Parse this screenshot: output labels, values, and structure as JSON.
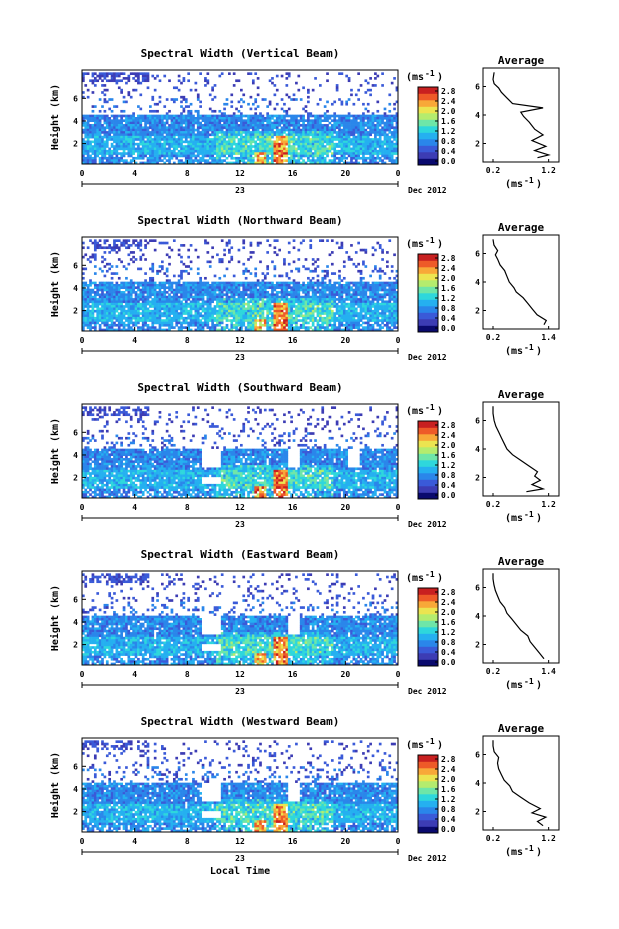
{
  "colormap": [
    "#0a0a6e",
    "#3c3cb4",
    "#3a5ad8",
    "#2a86ea",
    "#25b0f0",
    "#2ed7dc",
    "#6ee6a8",
    "#b4ec6e",
    "#ece450",
    "#f8a838",
    "#ee5a28",
    "#c82020"
  ],
  "chart_data": [
    {
      "type": "heatmap",
      "title": "Spectral Width (Vertical Beam)",
      "ylabel": "Height (km)",
      "x_ticks": [
        "0",
        "4",
        "8",
        "12",
        "16",
        "20",
        "0"
      ],
      "y_ticks": [
        "6",
        "4",
        "2"
      ],
      "date_left": "23",
      "date_right": "Dec 2012",
      "colorbar": {
        "unit": "(ms",
        "unit_sup": "-1",
        "unit_close": ")",
        "ticks": [
          "2.8",
          "2.4",
          "2.0",
          "1.6",
          "1.2",
          "0.8",
          "0.4",
          "0.0"
        ]
      },
      "profile": {
        "title": "Average",
        "x_ticks": [
          "0.2",
          "1.2"
        ],
        "y_ticks": [
          "6",
          "4",
          "2"
        ],
        "xlabel": "(ms",
        "xlabel_sup": "-1",
        "xlabel_close": ")",
        "points": [
          [
            1.0,
            1.0
          ],
          [
            1.2,
            1.2
          ],
          [
            0.95,
            1.5
          ],
          [
            1.15,
            1.8
          ],
          [
            0.9,
            2.2
          ],
          [
            1.1,
            2.6
          ],
          [
            0.95,
            3.0
          ],
          [
            0.85,
            3.5
          ],
          [
            0.75,
            3.9
          ],
          [
            0.7,
            4.2
          ],
          [
            1.1,
            4.5
          ],
          [
            0.55,
            4.8
          ],
          [
            0.45,
            5.2
          ],
          [
            0.35,
            5.6
          ],
          [
            0.3,
            5.9
          ],
          [
            0.22,
            6.2
          ],
          [
            0.2,
            6.5
          ],
          [
            0.22,
            7.0
          ]
        ]
      }
    },
    {
      "type": "heatmap",
      "title": "Spectral Width (Northward Beam)",
      "ylabel": "Height (km)",
      "x_ticks": [
        "0",
        "4",
        "8",
        "12",
        "16",
        "20",
        "0"
      ],
      "y_ticks": [
        "6",
        "4",
        "2"
      ],
      "date_left": "23",
      "date_right": "Dec 2012",
      "colorbar": {
        "unit": "(ms",
        "unit_sup": "-1",
        "unit_close": ")",
        "ticks": [
          "2.8",
          "2.4",
          "2.0",
          "1.6",
          "1.2",
          "0.8",
          "0.4",
          "0.0"
        ]
      },
      "profile": {
        "title": "Average",
        "x_ticks": [
          "0.2",
          "1.4"
        ],
        "y_ticks": [
          "6",
          "4",
          "2"
        ],
        "xlabel": "(ms",
        "xlabel_sup": "-1",
        "xlabel_close": ")",
        "points": [
          [
            1.3,
            1.0
          ],
          [
            1.35,
            1.3
          ],
          [
            1.15,
            1.7
          ],
          [
            1.05,
            2.1
          ],
          [
            0.95,
            2.5
          ],
          [
            0.85,
            2.9
          ],
          [
            0.7,
            3.3
          ],
          [
            0.65,
            3.6
          ],
          [
            0.55,
            4.0
          ],
          [
            0.5,
            4.4
          ],
          [
            0.45,
            4.8
          ],
          [
            0.35,
            5.2
          ],
          [
            0.3,
            5.6
          ],
          [
            0.25,
            5.9
          ],
          [
            0.3,
            6.2
          ],
          [
            0.22,
            6.6
          ],
          [
            0.2,
            7.0
          ]
        ]
      }
    },
    {
      "type": "heatmap",
      "title": "Spectral Width (Southward Beam)",
      "ylabel": "Height (km)",
      "x_ticks": [
        "0",
        "4",
        "8",
        "12",
        "16",
        "20",
        "0"
      ],
      "y_ticks": [
        "6",
        "4",
        "2"
      ],
      "date_left": "23",
      "date_right": "Dec 2012",
      "colorbar": {
        "unit": "(ms",
        "unit_sup": "-1",
        "unit_close": ")",
        "ticks": [
          "2.8",
          "2.4",
          "2.0",
          "1.6",
          "1.2",
          "0.8",
          "0.4",
          "0.0"
        ]
      },
      "profile": {
        "title": "Average",
        "x_ticks": [
          "0.2",
          "1.2"
        ],
        "y_ticks": [
          "6",
          "4",
          "2"
        ],
        "xlabel": "(ms",
        "xlabel_sup": "-1",
        "xlabel_close": ")",
        "points": [
          [
            0.8,
            1.0
          ],
          [
            1.1,
            1.2
          ],
          [
            0.9,
            1.5
          ],
          [
            1.05,
            1.8
          ],
          [
            0.95,
            2.1
          ],
          [
            1.0,
            2.4
          ],
          [
            0.85,
            2.8
          ],
          [
            0.7,
            3.2
          ],
          [
            0.55,
            3.6
          ],
          [
            0.45,
            4.0
          ],
          [
            0.4,
            4.4
          ],
          [
            0.35,
            4.8
          ],
          [
            0.3,
            5.2
          ],
          [
            0.25,
            5.6
          ],
          [
            0.22,
            6.0
          ],
          [
            0.2,
            6.5
          ],
          [
            0.2,
            7.0
          ]
        ]
      }
    },
    {
      "type": "heatmap",
      "title": "Spectral Width (Eastward Beam)",
      "ylabel": "Height (km)",
      "x_ticks": [
        "0",
        "4",
        "8",
        "12",
        "16",
        "20",
        "0"
      ],
      "y_ticks": [
        "6",
        "4",
        "2"
      ],
      "date_left": "23",
      "date_right": "Dec 2012",
      "colorbar": {
        "unit": "(ms",
        "unit_sup": "-1",
        "unit_close": ")",
        "ticks": [
          "2.8",
          "2.4",
          "2.0",
          "1.6",
          "1.2",
          "0.8",
          "0.4",
          "0.0"
        ]
      },
      "profile": {
        "title": "Average",
        "x_ticks": [
          "0.2",
          "1.4"
        ],
        "y_ticks": [
          "6",
          "4",
          "2"
        ],
        "xlabel": "(ms",
        "xlabel_sup": "-1",
        "xlabel_close": ")",
        "points": [
          [
            1.3,
            1.0
          ],
          [
            1.2,
            1.4
          ],
          [
            1.1,
            1.8
          ],
          [
            1.0,
            2.2
          ],
          [
            0.95,
            2.6
          ],
          [
            0.8,
            3.0
          ],
          [
            0.7,
            3.4
          ],
          [
            0.6,
            3.8
          ],
          [
            0.5,
            4.2
          ],
          [
            0.45,
            4.6
          ],
          [
            0.35,
            5.0
          ],
          [
            0.3,
            5.4
          ],
          [
            0.25,
            5.8
          ],
          [
            0.22,
            6.2
          ],
          [
            0.2,
            6.6
          ],
          [
            0.2,
            7.0
          ]
        ]
      }
    },
    {
      "type": "heatmap",
      "title": "Spectral Width (Westward Beam)",
      "ylabel": "Height (km)",
      "x_ticks": [
        "0",
        "4",
        "8",
        "12",
        "16",
        "20",
        "0"
      ],
      "y_ticks": [
        "6",
        "4",
        "2"
      ],
      "date_left": "23",
      "date_right": "Dec 2012",
      "xlabel": "Local Time",
      "colorbar": {
        "unit": "(ms",
        "unit_sup": "-1",
        "unit_close": ")",
        "ticks": [
          "2.8",
          "2.4",
          "2.0",
          "1.6",
          "1.2",
          "0.8",
          "0.4",
          "0.0"
        ]
      },
      "profile": {
        "title": "Average",
        "x_ticks": [
          "0.2",
          "1.2"
        ],
        "y_ticks": [
          "6",
          "4",
          "2"
        ],
        "xlabel": "(ms",
        "xlabel_sup": "-1",
        "xlabel_close": ")",
        "points": [
          [
            1.1,
            1.0
          ],
          [
            1.0,
            1.3
          ],
          [
            1.15,
            1.6
          ],
          [
            0.9,
            1.9
          ],
          [
            1.05,
            2.2
          ],
          [
            0.85,
            2.6
          ],
          [
            0.7,
            3.0
          ],
          [
            0.55,
            3.4
          ],
          [
            0.5,
            3.8
          ],
          [
            0.4,
            4.2
          ],
          [
            0.35,
            4.6
          ],
          [
            0.3,
            5.0
          ],
          [
            0.28,
            5.4
          ],
          [
            0.3,
            5.8
          ],
          [
            0.22,
            6.2
          ],
          [
            0.2,
            6.6
          ],
          [
            0.2,
            7.0
          ]
        ]
      }
    }
  ]
}
